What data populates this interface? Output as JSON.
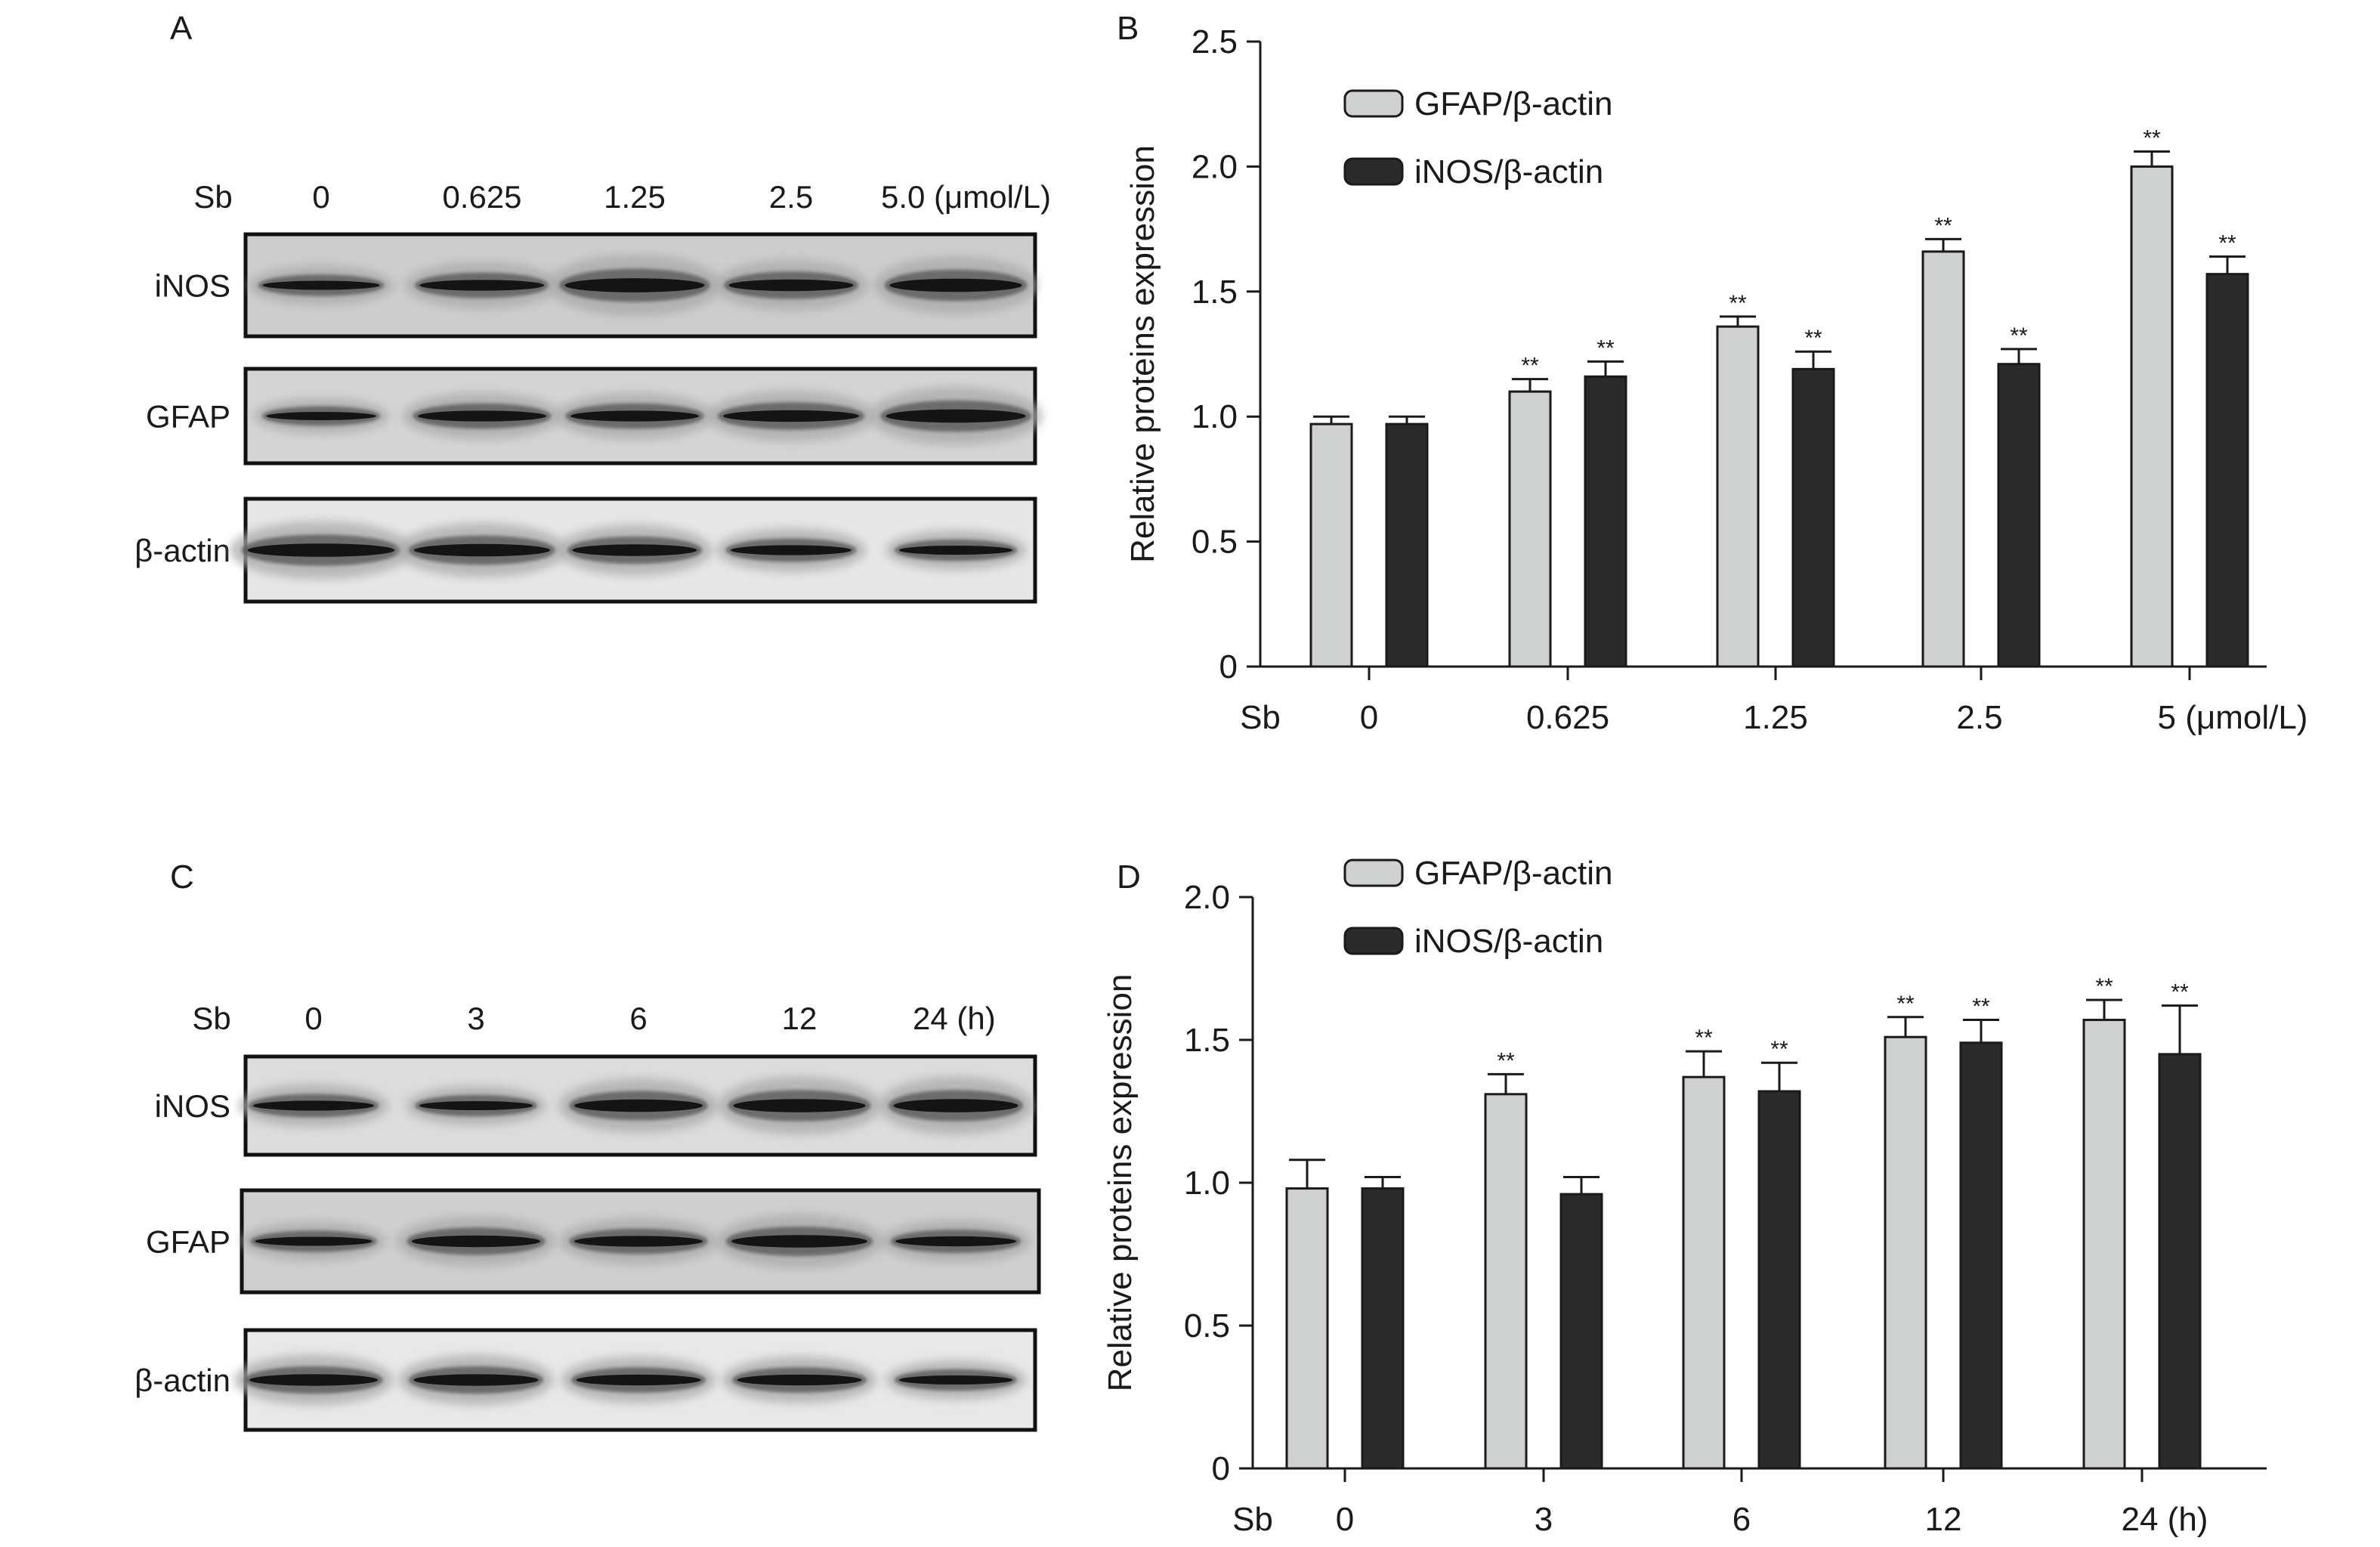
{
  "colors": {
    "gfap_bar": "#cfd1d0",
    "inos_bar": "#2b2b2b",
    "axis": "#1a1a1a",
    "blot_bg": "#d7d7d7",
    "band": "#1c1c1c"
  },
  "panel_a": {
    "letter": "A",
    "sb_label": "Sb",
    "lanes": [
      "0",
      "0.625",
      "1.25",
      "2.5",
      "5.0 (μmol/L)"
    ],
    "rows": [
      "iNOS",
      "GFAP",
      "β-actin"
    ]
  },
  "panel_c": {
    "letter": "C",
    "sb_label": "Sb",
    "lanes": [
      "0",
      "3",
      "6",
      "12",
      "24 (h)"
    ],
    "rows": [
      "iNOS",
      "GFAP",
      "β-actin"
    ]
  },
  "chart_data": [
    {
      "panel": "B",
      "type": "bar",
      "ylabel": "Relative proteins expression",
      "xlabel_prefix": "Sb",
      "categories": [
        "0",
        "0.625",
        "1.25",
        "2.5",
        "5 (μmol/L)"
      ],
      "ylim": [
        0,
        2.5
      ],
      "yticks": [
        "0",
        "0.5",
        "1.0",
        "1.5",
        "2.0",
        "2.5"
      ],
      "legend_position": "top-left",
      "significance_label": "**",
      "series": [
        {
          "name": "GFAP/β-actin",
          "color": "#cfd1d0",
          "values": [
            0.97,
            1.1,
            1.36,
            1.66,
            2.0
          ],
          "errors": [
            0.03,
            0.05,
            0.04,
            0.05,
            0.06
          ],
          "significant": [
            false,
            true,
            true,
            true,
            true
          ]
        },
        {
          "name": "iNOS/β-actin",
          "color": "#2b2b2b",
          "values": [
            0.97,
            1.16,
            1.19,
            1.21,
            1.57
          ],
          "errors": [
            0.03,
            0.06,
            0.07,
            0.06,
            0.07
          ],
          "significant": [
            false,
            true,
            true,
            true,
            true
          ]
        }
      ]
    },
    {
      "panel": "D",
      "type": "bar",
      "ylabel": "Relative proteins expression",
      "xlabel_prefix": "Sb",
      "categories": [
        "0",
        "3",
        "6",
        "12",
        "24 (h)"
      ],
      "ylim": [
        0,
        2.0
      ],
      "yticks": [
        "0",
        "0.5",
        "1.0",
        "1.5",
        "2.0"
      ],
      "legend_position": "top-left",
      "significance_label": "**",
      "series": [
        {
          "name": "GFAP/β-actin",
          "color": "#cfd1d0",
          "values": [
            0.98,
            1.31,
            1.37,
            1.51,
            1.57
          ],
          "errors": [
            0.1,
            0.07,
            0.09,
            0.07,
            0.07
          ],
          "significant": [
            false,
            true,
            true,
            true,
            true
          ]
        },
        {
          "name": "iNOS/β-actin",
          "color": "#2b2b2b",
          "values": [
            0.98,
            0.96,
            1.32,
            1.49,
            1.45
          ],
          "errors": [
            0.04,
            0.06,
            0.1,
            0.08,
            0.17
          ],
          "significant": [
            false,
            false,
            true,
            true,
            true
          ]
        }
      ]
    }
  ]
}
